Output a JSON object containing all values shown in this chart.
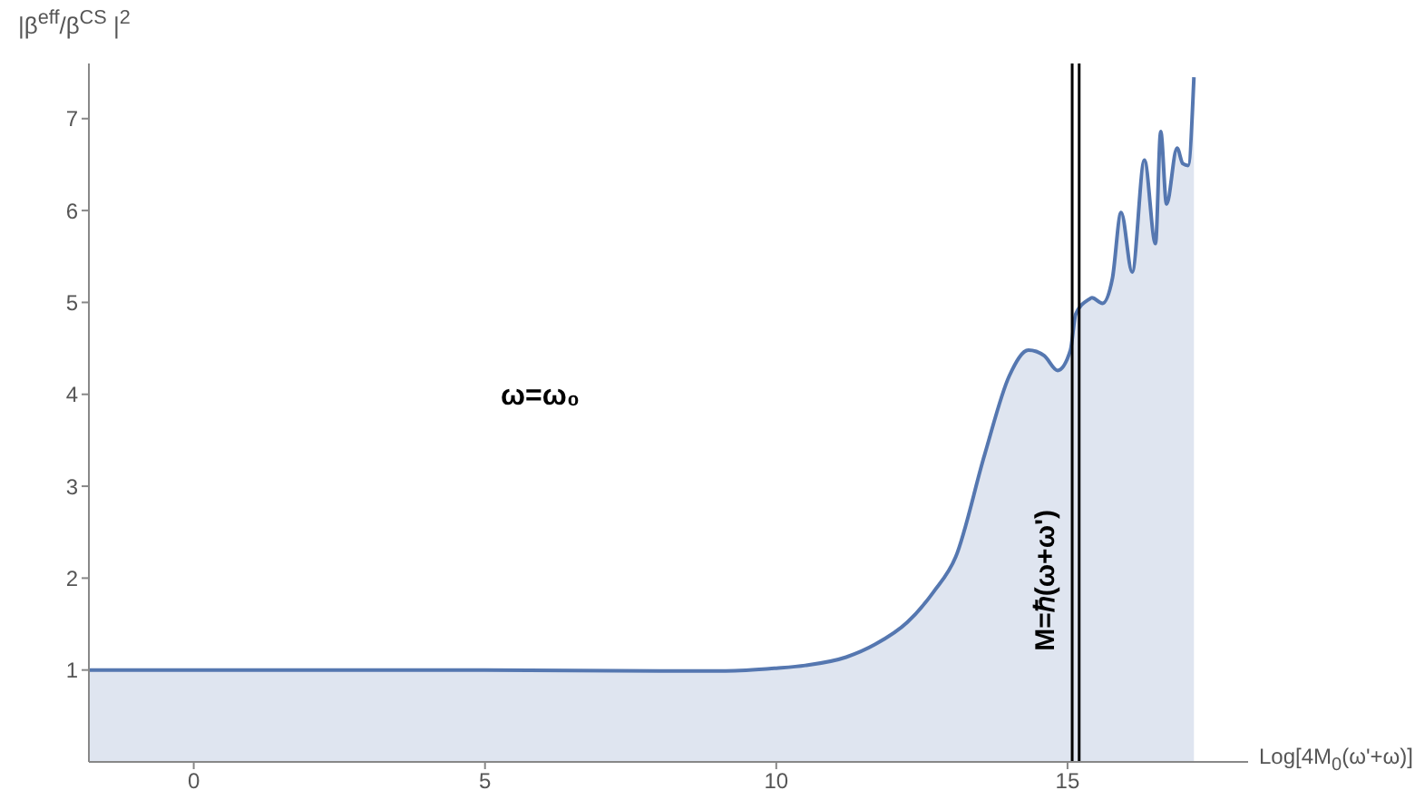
{
  "chart_data": {
    "type": "area",
    "ylabel": "|β$^{eff}$/β$^{CS}$ |$^{2}$",
    "xlabel": "Log[4M$_{0}$(ω'+ω)]",
    "annotations": [
      "ω=ω₀"
    ],
    "x": [
      -1.8,
      2,
      5,
      8,
      9.13,
      10,
      10.5,
      11.2,
      11.7,
      12.25,
      12.7,
      13.08,
      13.58,
      14.0,
      14.33,
      14.6,
      14.83,
      15.05,
      15.14,
      15.36,
      15.42,
      15.6,
      15.77,
      15.92,
      16.11,
      16.32,
      16.51,
      16.6,
      16.7,
      16.88,
      16.98,
      17.07,
      17.17
    ],
    "series": [
      {
        "color": "#5577b0",
        "values": [
          1,
          1,
          1,
          0.99,
          0.99,
          1.02,
          1.05,
          1.14,
          1.28,
          1.52,
          1.85,
          2.23,
          3.35,
          4.2,
          4.48,
          4.42,
          4.26,
          4.48,
          4.87,
          5.03,
          5.05,
          4.99,
          5.26,
          5.98,
          5.33,
          6.55,
          5.64,
          6.86,
          6.07,
          6.68,
          6.51,
          6.49,
          7.45
        ]
      }
    ],
    "xlim": [
      -1.8,
      18.1
    ],
    "xticks": [
      0,
      5,
      10,
      15
    ],
    "ylim": [
      0,
      7.6
    ],
    "yticks": [
      1,
      2,
      3,
      4,
      5,
      6,
      7
    ],
    "ref_lines": [
      {
        "axis": "x",
        "value": 15.08,
        "label": "M=ℏ(ω+ω')",
        "color": "#000000"
      },
      {
        "axis": "x",
        "value": 15.2,
        "color": "#000000"
      }
    ],
    "grid": false,
    "legend": false
  }
}
